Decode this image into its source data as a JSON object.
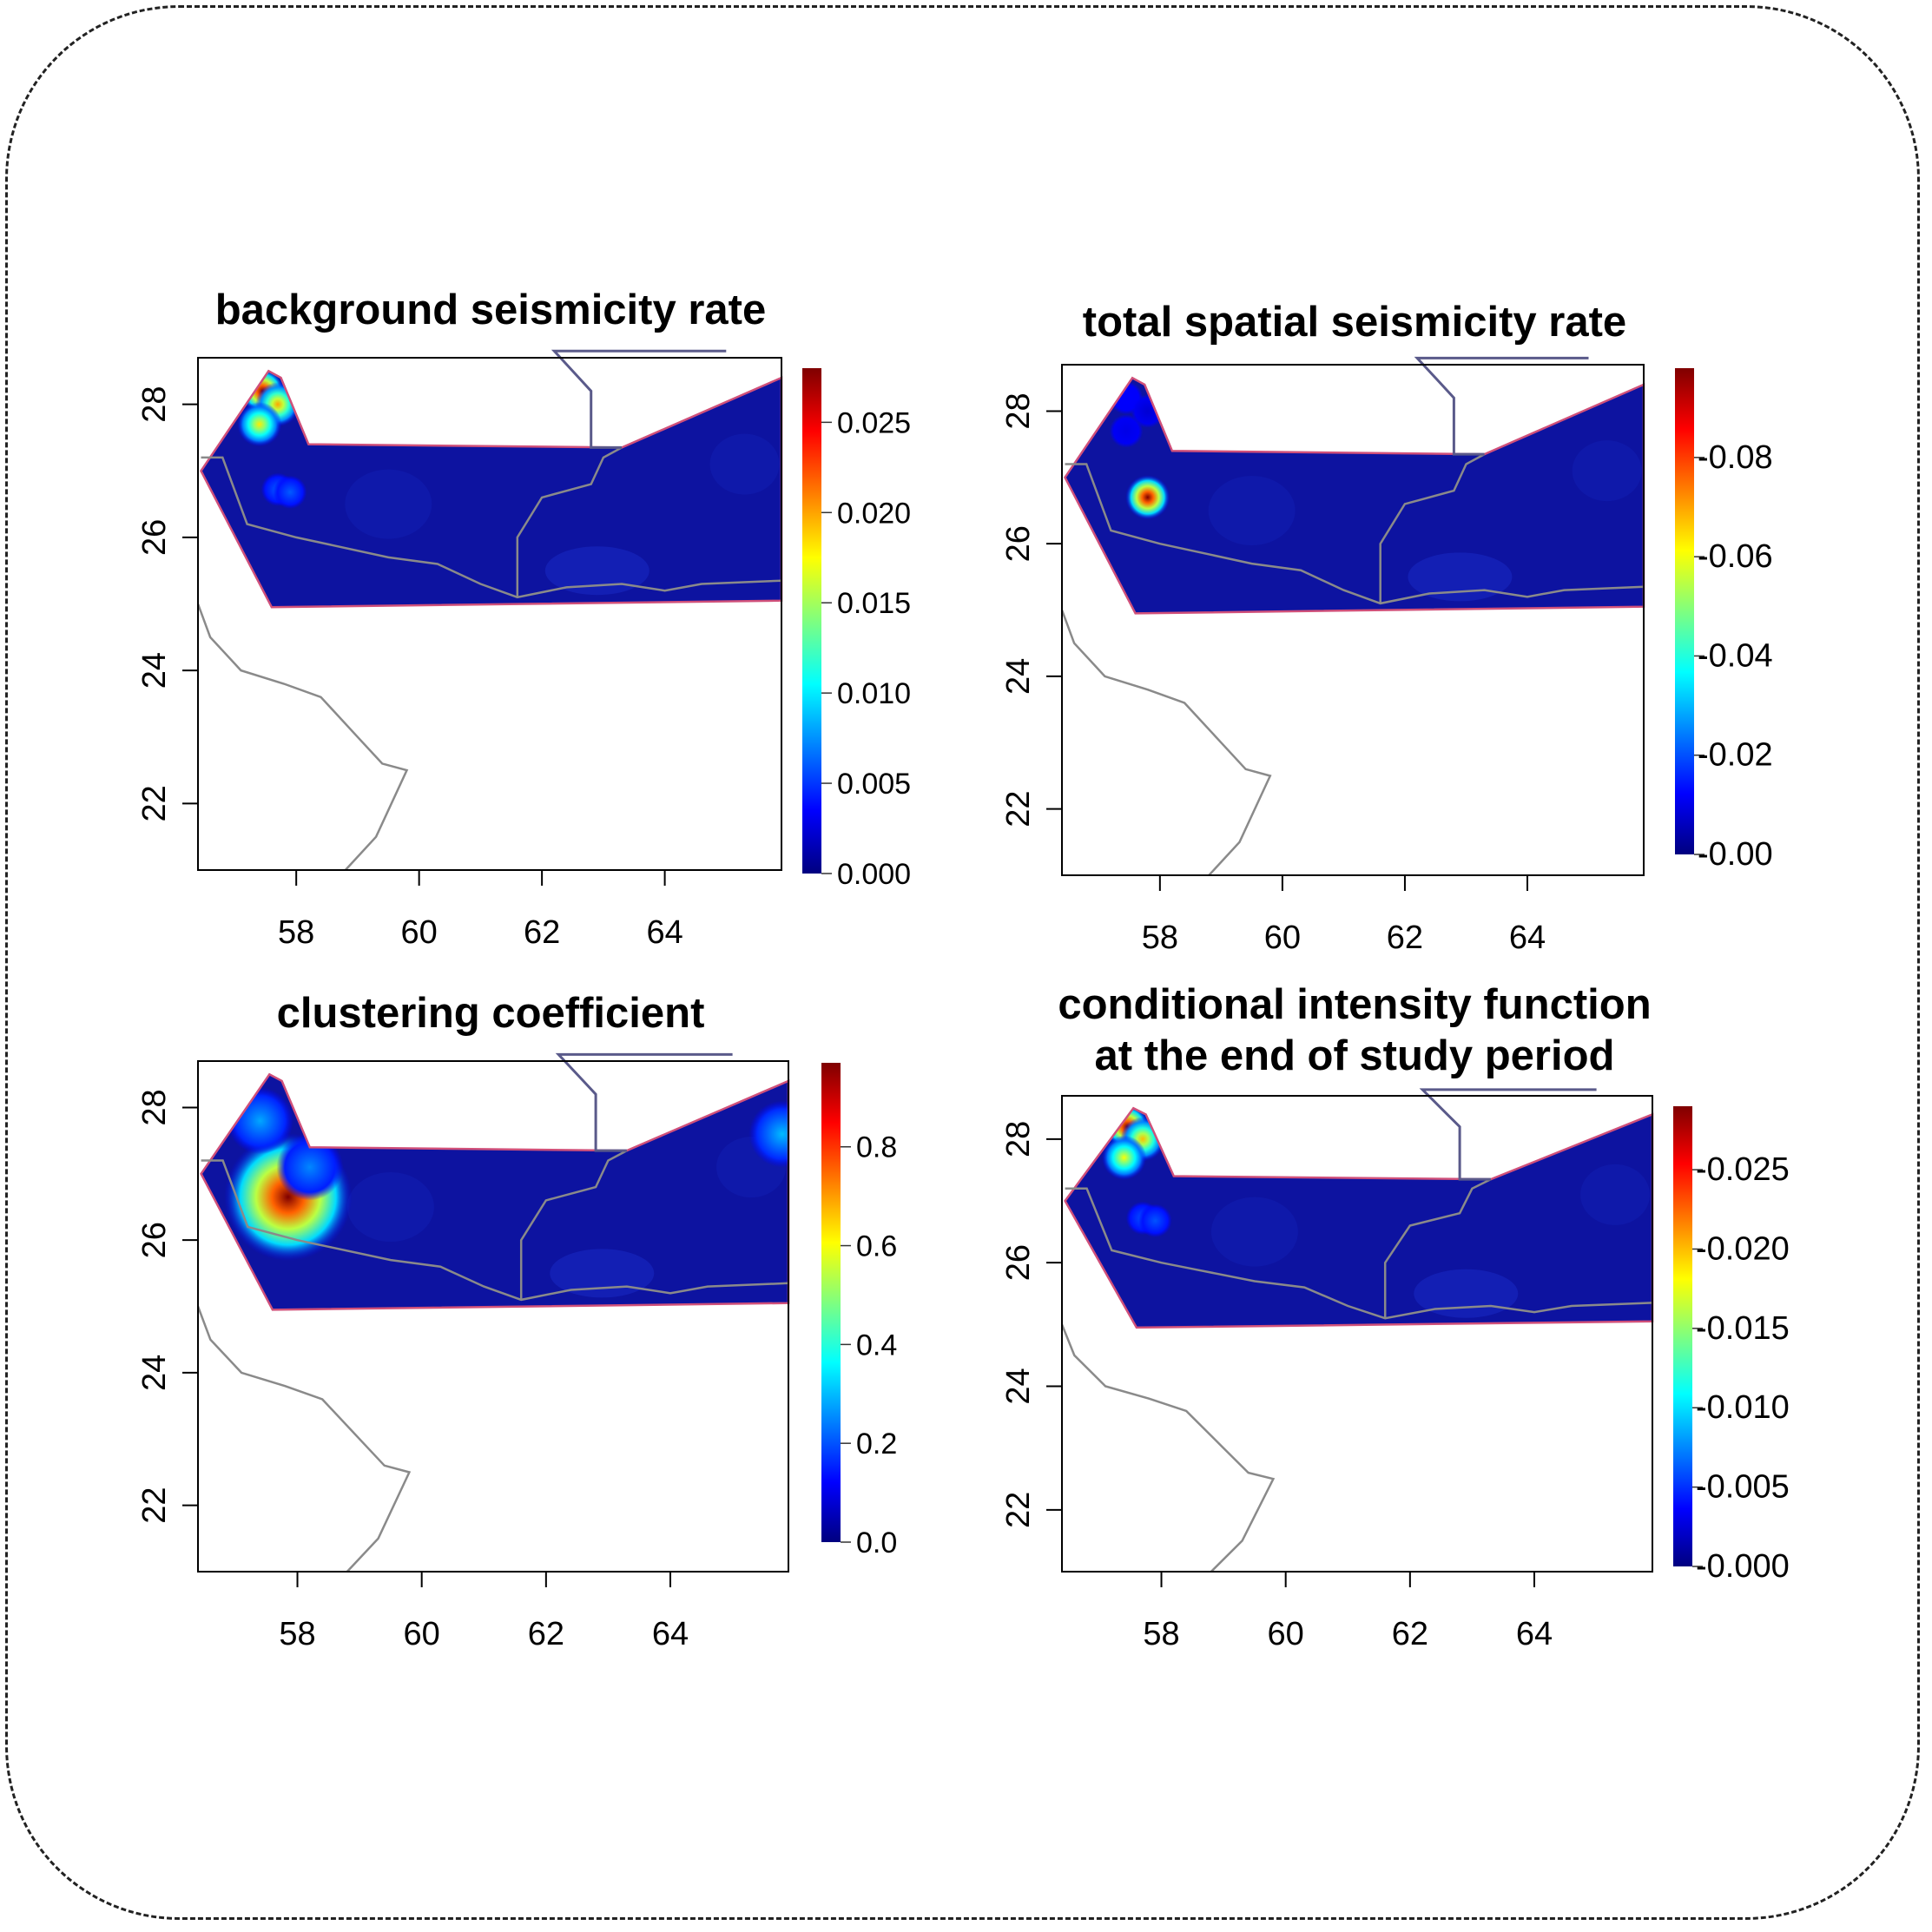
{
  "panels": [
    {
      "id": "background",
      "title": "background seismicity rate",
      "x_ticks": [
        "58",
        "60",
        "62",
        "64"
      ],
      "y_ticks": [
        "28",
        "26",
        "24",
        "22"
      ],
      "colorbar_labels": [
        "0.025",
        "0.020",
        "0.015",
        "0.010",
        "0.005",
        "0.000"
      ],
      "colorbar_range": [
        0,
        0.028
      ],
      "hotspots": [
        {
          "lon": 57.45,
          "lat": 28.2,
          "value": 0.028
        },
        {
          "lon": 57.7,
          "lat": 28.0,
          "value": 0.02
        },
        {
          "lon": 57.4,
          "lat": 27.7,
          "value": 0.018
        },
        {
          "lon": 57.7,
          "lat": 26.72,
          "value": 0.006
        },
        {
          "lon": 57.9,
          "lat": 26.68,
          "value": 0.006
        }
      ]
    },
    {
      "id": "total",
      "title": "total spatial seismicity rate",
      "x_ticks": [
        "58",
        "60",
        "62",
        "64"
      ],
      "y_ticks": [
        "28",
        "26",
        "24",
        "22"
      ],
      "colorbar_labels": [
        "0.08",
        "0.06",
        "0.04",
        "0.02",
        "0.00"
      ],
      "colorbar_range": [
        0,
        0.098
      ],
      "hotspots": [
        {
          "lon": 57.8,
          "lat": 26.7,
          "value": 0.098
        },
        {
          "lon": 57.45,
          "lat": 28.2,
          "value": 0.012
        },
        {
          "lon": 57.45,
          "lat": 27.7,
          "value": 0.01
        },
        {
          "lon": 57.8,
          "lat": 28.0,
          "value": 0.008
        }
      ]
    },
    {
      "id": "clustering",
      "title": "clustering coefficient",
      "x_ticks": [
        "58",
        "60",
        "62",
        "64"
      ],
      "y_ticks": [
        "28",
        "26",
        "24",
        "22"
      ],
      "colorbar_labels": [
        "0.8",
        "0.6",
        "0.4",
        "0.2",
        "0.0"
      ],
      "colorbar_range": [
        0,
        0.97
      ],
      "hotspots": [
        {
          "lon": 57.85,
          "lat": 26.65,
          "value": 0.97
        },
        {
          "lon": 57.4,
          "lat": 27.8,
          "value": 0.28
        },
        {
          "lon": 58.2,
          "lat": 27.1,
          "value": 0.25
        },
        {
          "lon": 65.8,
          "lat": 27.6,
          "value": 0.3
        }
      ]
    },
    {
      "id": "conditional",
      "title": "conditional intensity function at the end of study period",
      "title_lines": [
        "conditional intensity function",
        "at the end of study period"
      ],
      "x_ticks": [
        "58",
        "60",
        "62",
        "64"
      ],
      "y_ticks": [
        "28",
        "26",
        "24",
        "22"
      ],
      "colorbar_labels": [
        "0.025",
        "0.020",
        "0.015",
        "0.010",
        "0.005",
        "0.000"
      ],
      "colorbar_range": [
        0,
        0.029
      ],
      "hotspots": [
        {
          "lon": 57.45,
          "lat": 28.2,
          "value": 0.029
        },
        {
          "lon": 57.7,
          "lat": 28.0,
          "value": 0.02
        },
        {
          "lon": 57.4,
          "lat": 27.7,
          "value": 0.018
        },
        {
          "lon": 57.7,
          "lat": 26.72,
          "value": 0.006
        },
        {
          "lon": 57.9,
          "lat": 26.68,
          "value": 0.006
        }
      ]
    }
  ],
  "colors": {
    "background_field": "#0d13a0",
    "region_border": "#d0507a",
    "border_lines": "#8a8a8a",
    "northern_border": "#5a5a8a"
  }
}
